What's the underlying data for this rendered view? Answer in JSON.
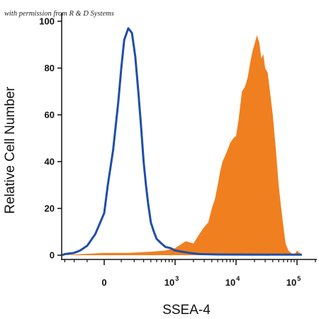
{
  "watermark": "with permission from R & D Systems",
  "colors": {
    "isotype": "#1f4fa6",
    "stained": "#f07f1f",
    "axis": "#111111"
  },
  "chart_data": {
    "type": "area",
    "xlabel": "SSEA-4",
    "ylabel": "Relative Cell Number",
    "x_scale": "logicle",
    "ylim": [
      0,
      100
    ],
    "y_ticks": [
      0,
      20,
      40,
      60,
      80,
      100
    ],
    "x_ticks": [
      {
        "value": 0,
        "base": "0",
        "exp": ""
      },
      {
        "value": 1000,
        "base": "10",
        "exp": "3"
      },
      {
        "value": 10000,
        "base": "10",
        "exp": "4"
      },
      {
        "value": 100000,
        "base": "10",
        "exp": "5"
      }
    ],
    "grid": false,
    "legend": "none",
    "series": [
      {
        "style": "filled",
        "color": "#f07f1f",
        "x": [
          -800,
          0,
          150,
          400,
          700,
          1000,
          1500,
          2000,
          2500,
          3000,
          3500,
          4000,
          4500,
          5000,
          5500,
          6000,
          7000,
          8000,
          9000,
          10000,
          11000,
          12500,
          14000,
          15500,
          17000,
          18500,
          20000,
          22000,
          24000,
          26000,
          28000,
          30000,
          33000,
          36000,
          40000,
          45000,
          50000,
          55000,
          60000,
          65000,
          72000,
          80000,
          90000,
          100000,
          110000,
          120000
        ],
        "y": [
          0,
          1,
          1,
          1.5,
          2,
          3,
          6,
          5,
          9,
          12,
          14,
          20,
          24,
          30,
          36,
          40,
          44,
          48,
          50,
          51,
          58,
          70,
          72,
          76,
          82,
          87,
          90,
          94,
          91,
          84,
          86,
          80,
          78,
          70,
          60,
          45,
          30,
          20,
          12,
          5,
          2,
          1,
          0,
          2,
          1,
          0
        ]
      },
      {
        "style": "line",
        "color": "#1f4fa6",
        "x": [
          -800,
          -300,
          -200,
          -150,
          -100,
          -50,
          0,
          20,
          50,
          80,
          100,
          120,
          150,
          180,
          210,
          240,
          270,
          300,
          330,
          360,
          400,
          450,
          500,
          600,
          700,
          850,
          1000,
          1300,
          1700,
          2500,
          5000,
          120000
        ],
        "y": [
          0,
          0.5,
          1,
          2,
          4,
          9,
          18,
          30,
          45,
          65,
          80,
          92,
          97,
          95,
          85,
          70,
          55,
          40,
          30,
          22,
          14,
          10,
          7,
          5,
          3.5,
          3,
          2,
          1.5,
          1,
          0.5,
          0.3,
          0.2
        ]
      }
    ]
  }
}
